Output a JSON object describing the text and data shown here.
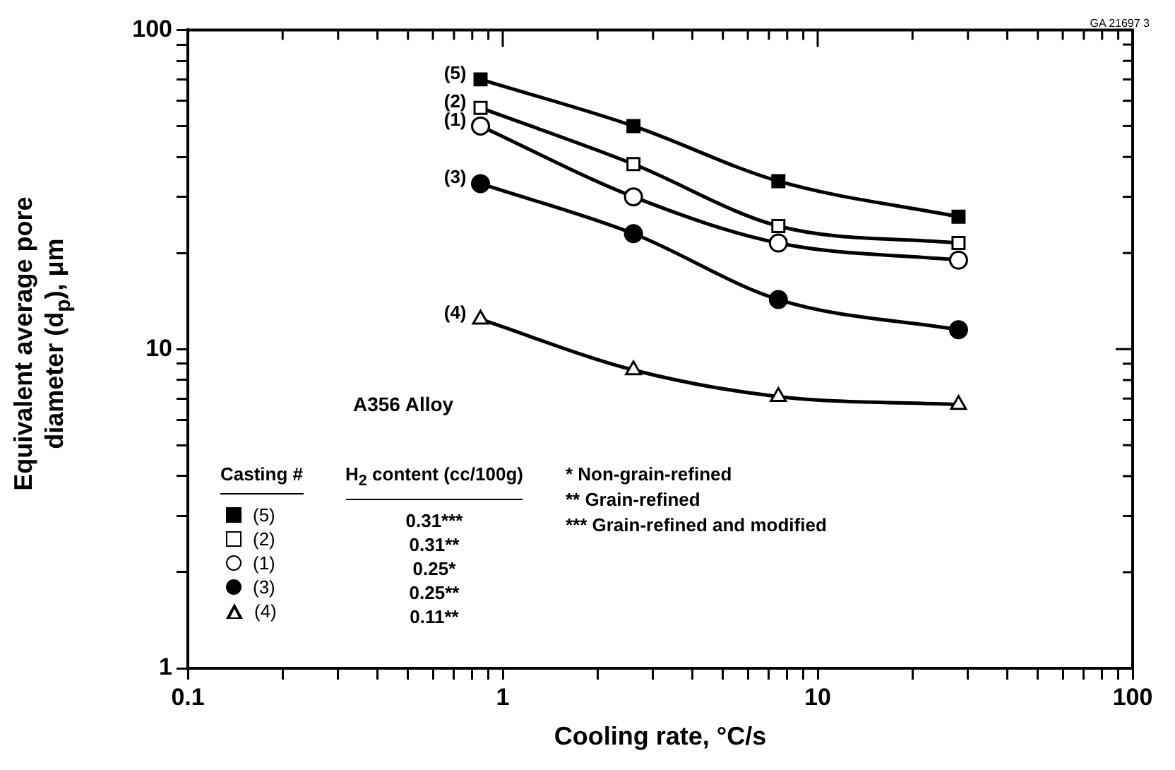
{
  "chart_data": {
    "type": "line",
    "xlabel": "Cooling rate, °C/s",
    "ylabel": "Equivalent average pore diameter (d$_{p}$), μm",
    "log": "xy",
    "grid": false,
    "legend": "bottom left",
    "legend_title": "Casting #",
    "line_style": "solid",
    "x": [
      0.85,
      2.6,
      7.5,
      28
    ],
    "xlim": [
      0.1,
      100
    ],
    "ylim": [
      1,
      100
    ],
    "xticks": [
      0.1,
      {
        "value": 0.2,
        "label": null
      },
      {
        "value": 0.3,
        "label": null
      },
      {
        "value": 0.4,
        "label": null
      },
      {
        "value": 0.5,
        "label": null
      },
      {
        "value": 0.6,
        "label": null
      },
      {
        "value": 0.7,
        "label": null
      },
      {
        "value": 0.8,
        "label": null
      },
      {
        "value": 0.9,
        "label": null
      },
      1,
      {
        "value": 2,
        "label": null
      },
      {
        "value": 3,
        "label": null
      },
      {
        "value": 4,
        "label": null
      },
      {
        "value": 5,
        "label": null
      },
      {
        "value": 6,
        "label": null
      },
      {
        "value": 7,
        "label": null
      },
      {
        "value": 8,
        "label": null
      },
      {
        "value": 9,
        "label": null
      },
      10,
      {
        "value": 20,
        "label": null
      },
      {
        "value": 30,
        "label": null
      },
      {
        "value": 40,
        "label": null
      },
      {
        "value": 50,
        "label": null
      },
      {
        "value": 60,
        "label": null
      },
      {
        "value": 70,
        "label": null
      },
      {
        "value": 80,
        "label": null
      },
      {
        "value": 90,
        "label": null
      },
      100
    ],
    "yticks": [
      1,
      {
        "value": 2,
        "label": null
      },
      {
        "value": 3,
        "label": null
      },
      {
        "value": 4,
        "label": null
      },
      {
        "value": 5,
        "label": null
      },
      {
        "value": 6,
        "label": null
      },
      {
        "value": 7,
        "label": null
      },
      {
        "value": 8,
        "label": null
      },
      {
        "value": 9,
        "label": null
      },
      10,
      {
        "value": 20,
        "label": null
      },
      {
        "value": 30,
        "label": null
      },
      {
        "value": 40,
        "label": null
      },
      {
        "value": 50,
        "label": null
      },
      {
        "value": 60,
        "label": null
      },
      {
        "value": 70,
        "label": null
      },
      {
        "value": 80,
        "label": null
      },
      {
        "value": 90,
        "label": null
      },
      100
    ],
    "series": [
      {
        "name": "(5)",
        "color": "#000000",
        "marker": "square",
        "colors": [
          "#000000",
          "#000000",
          "#000000",
          "#000000"
        ],
        "values": [
          70,
          50,
          33.6,
          26
        ]
      },
      {
        "name": "(2)",
        "color": "#000000",
        "marker": "square",
        "colors": [
          "#ffffff",
          "#ffffff",
          "#ffffff",
          "#ffffff"
        ],
        "values": [
          57,
          38,
          24.3,
          21.5
        ]
      },
      {
        "name": "(1)",
        "color": "#000000",
        "marker": "circle",
        "colors": [
          "#ffffff",
          "#ffffff",
          "#ffffff",
          "#ffffff"
        ],
        "values": [
          50,
          30,
          21.5,
          19
        ]
      },
      {
        "name": "(3)",
        "color": "#000000",
        "marker": "circle",
        "colors": [
          "#000000",
          "#000000",
          "#000000",
          "#000000"
        ],
        "values": [
          33,
          23,
          14.3,
          11.5
        ]
      },
      {
        "name": "(4)",
        "color": "#000000",
        "marker": "triangle",
        "colors": [
          "#ffffff",
          "#ffffff",
          "#ffffff",
          "#ffffff"
        ],
        "values": [
          12.4,
          8.6,
          7.1,
          6.7
        ]
      }
    ],
    "annotations": [
      "A356 Alloy",
      "H$_{2}$ content (cc/100g)",
      "0.31***",
      "0.31**",
      "0.25*",
      "0.25**",
      "0.11**",
      "* Non-grain-refined",
      "** Grain-refined",
      "*** Grain-refined and modified",
      "GA 21697 3"
    ]
  }
}
